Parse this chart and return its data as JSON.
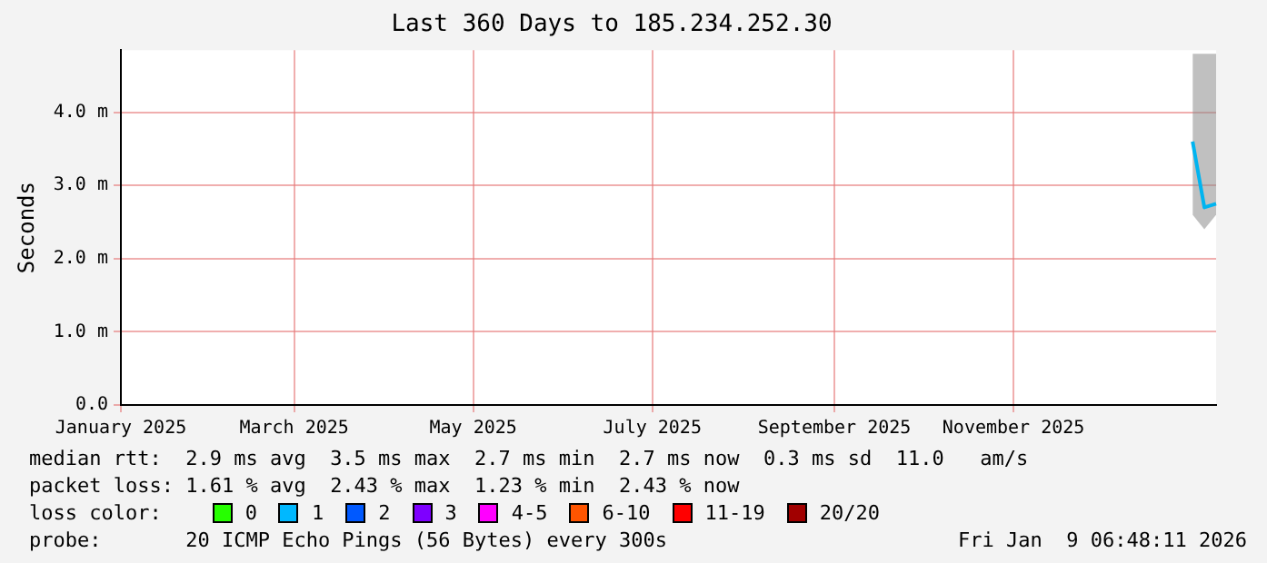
{
  "chart_data": {
    "type": "line",
    "title": "Last 360 Days to 185.234.252.30",
    "ylabel": "Seconds",
    "x": [
      "2026-01-01",
      "2026-01-05",
      "2026-01-09"
    ],
    "series": [
      {
        "color": "#00b4f0",
        "values": [
          3.6,
          2.7,
          2.75
        ],
        "lower": [
          2.6,
          2.4,
          2.6
        ],
        "upper": [
          4.8,
          4.8,
          4.8
        ]
      }
    ],
    "xlim": [
      "2025-01-01",
      "2026-01-09"
    ],
    "xticks": [
      {
        "value": "2025-01-01",
        "label": "January 2025"
      },
      {
        "value": "2025-03-01",
        "label": "March 2025"
      },
      {
        "value": "2025-05-01",
        "label": "May 2025"
      },
      {
        "value": "2025-07-01",
        "label": "July 2025"
      },
      {
        "value": "2025-09-01",
        "label": "September 2025"
      },
      {
        "value": "2025-11-01",
        "label": "November 2025"
      }
    ],
    "ylim": [
      0,
      4.85
    ],
    "yticks": [
      {
        "value": 0,
        "label": "0.0"
      },
      {
        "value": 1,
        "label": "1.0 m"
      },
      {
        "value": 2,
        "label": "2.0 m"
      },
      {
        "value": 3,
        "label": "3.0 m"
      },
      {
        "value": 4,
        "label": "4.0 m"
      }
    ],
    "grid": true,
    "legend": false,
    "marker": "none",
    "line_style": "solid",
    "annotations": [
      "median rtt:  2.9 ms avg  3.5 ms max  2.7 ms min  2.7 ms now  0.3 ms sd  11.0   am/s",
      "packet loss: 1.61 % avg  2.43 % max  1.23 % min  2.43 % now",
      "loss color:",
      "0",
      "1",
      "2",
      "3",
      "4-5",
      "6-10",
      "11-19",
      "20/20",
      "probe:       20 ICMP Echo Pings (56 Bytes) every 300s",
      "Fri Jan  9 06:48:11 2026"
    ]
  }
}
